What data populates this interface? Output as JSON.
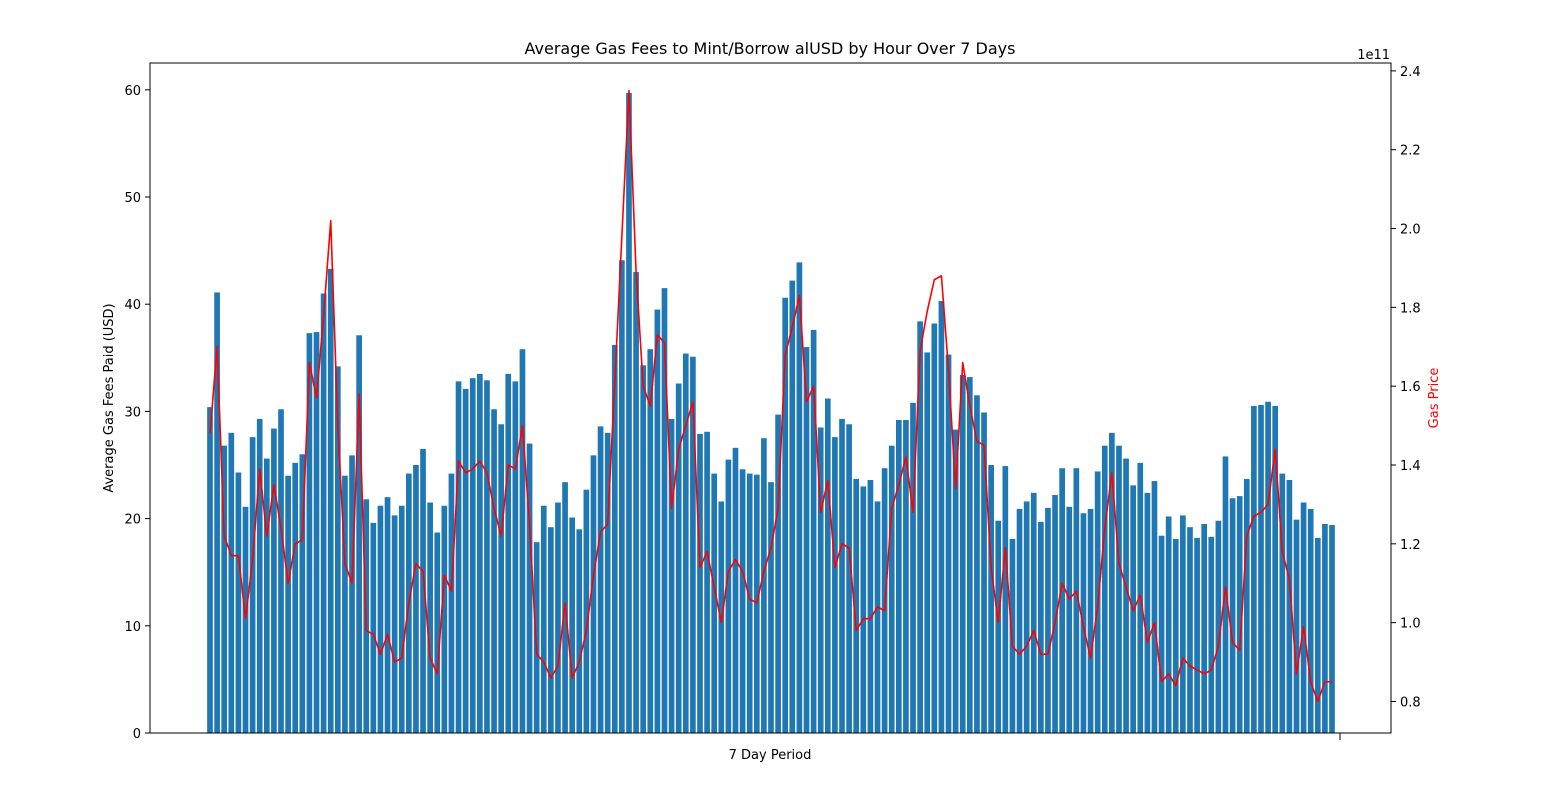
{
  "chart_data": {
    "type": "bar",
    "title": "Average Gas Fees to Mint/Borrow alUSD by Hour Over 7 Days",
    "xlabel": "7 Day Period",
    "ylabel": "Average Gas Fees Paid (USD)",
    "y2label": "Gas Price",
    "y2_offset_text": "1e11",
    "ylim": [
      0,
      62.5
    ],
    "y2lim": [
      0.72,
      2.42
    ],
    "y_ticks": [
      0,
      10,
      20,
      30,
      40,
      50,
      60
    ],
    "y2_ticks": [
      0.8,
      1.0,
      1.2,
      1.4,
      1.6,
      1.8,
      2.0,
      2.2,
      2.4
    ],
    "y_tick_labels": [
      "0",
      "10",
      "20",
      "30",
      "40",
      "50",
      "60"
    ],
    "y2_tick_labels": [
      "0.8",
      "1.0",
      "1.2",
      "1.4",
      "1.6",
      "1.8",
      "2.0",
      "2.2",
      "2.4"
    ],
    "bar_color": "#1f77b4",
    "line_color": "#ff0000",
    "series": [
      {
        "name": "Average Gas Fees Paid (USD)",
        "kind": "bar",
        "values": [
          30.4,
          41.1,
          26.8,
          28.0,
          24.3,
          21.1,
          27.6,
          29.3,
          25.6,
          28.4,
          30.2,
          24.0,
          25.2,
          26.0,
          37.3,
          37.4,
          41.0,
          43.3,
          34.2,
          24.0,
          25.9,
          37.1,
          21.8,
          19.6,
          21.2,
          22.0,
          20.3,
          21.2,
          24.2,
          25.0,
          26.5,
          21.5,
          18.7,
          21.2,
          24.2,
          32.8,
          32.1,
          33.1,
          33.5,
          32.9,
          30.2,
          28.8,
          33.5,
          32.8,
          35.8,
          27.0,
          17.8,
          21.2,
          19.2,
          21.5,
          23.4,
          20.1,
          19.0,
          22.7,
          25.9,
          28.6,
          28.0,
          36.2,
          44.1,
          59.7,
          43.0,
          34.3,
          35.8,
          39.5,
          41.5,
          29.3,
          32.6,
          35.4,
          35.1,
          27.9,
          28.1,
          24.2,
          21.6,
          25.5,
          26.6,
          24.6,
          24.2,
          24.1,
          27.5,
          23.4,
          29.7,
          40.6,
          42.2,
          43.9,
          36.0,
          37.6,
          28.5,
          31.2,
          27.6,
          29.3,
          28.8,
          23.7,
          23.0,
          23.6,
          21.6,
          24.7,
          26.8,
          29.2,
          29.2,
          30.8,
          38.4,
          35.5,
          38.2,
          40.3,
          35.3,
          28.3,
          33.4,
          33.2,
          31.5,
          29.9,
          25.0,
          19.8,
          24.9,
          18.1,
          20.9,
          21.6,
          22.4,
          19.7,
          21.0,
          22.2,
          24.7,
          21.1,
          24.7,
          20.5,
          20.9,
          24.4,
          26.8,
          28.0,
          26.8,
          25.6,
          23.1,
          25.2,
          22.4,
          23.5,
          18.4,
          20.2,
          18.1,
          20.3,
          19.2,
          18.2,
          19.5,
          18.3,
          19.8,
          25.8,
          21.9,
          22.1,
          23.7,
          30.5,
          30.6,
          30.9,
          30.5,
          24.2,
          23.6,
          19.9,
          21.5,
          20.9,
          18.2,
          19.5,
          19.4
        ]
      },
      {
        "name": "Gas Price",
        "kind": "line",
        "values": [
          1.48,
          1.7,
          1.22,
          1.17,
          1.17,
          1.01,
          1.16,
          1.39,
          1.22,
          1.35,
          1.24,
          1.1,
          1.2,
          1.21,
          1.66,
          1.57,
          1.78,
          2.02,
          1.5,
          1.15,
          1.1,
          1.58,
          0.98,
          0.97,
          0.92,
          0.97,
          0.9,
          0.91,
          1.05,
          1.15,
          1.13,
          0.91,
          0.87,
          1.12,
          1.08,
          1.41,
          1.38,
          1.39,
          1.41,
          1.38,
          1.29,
          1.22,
          1.4,
          1.39,
          1.5,
          1.25,
          0.92,
          0.9,
          0.86,
          0.89,
          1.05,
          0.86,
          0.9,
          0.98,
          1.12,
          1.23,
          1.25,
          1.61,
          1.98,
          2.35,
          1.89,
          1.6,
          1.55,
          1.73,
          1.71,
          1.29,
          1.44,
          1.5,
          1.56,
          1.14,
          1.18,
          1.09,
          1.0,
          1.13,
          1.16,
          1.13,
          1.06,
          1.05,
          1.13,
          1.19,
          1.29,
          1.68,
          1.75,
          1.83,
          1.56,
          1.6,
          1.28,
          1.36,
          1.14,
          1.2,
          1.19,
          0.98,
          1.01,
          1.01,
          1.04,
          1.03,
          1.29,
          1.35,
          1.42,
          1.28,
          1.69,
          1.79,
          1.87,
          1.88,
          1.64,
          1.34,
          1.66,
          1.55,
          1.46,
          1.45,
          1.14,
          1.0,
          1.19,
          0.94,
          0.92,
          0.94,
          0.98,
          0.92,
          0.92,
          1.0,
          1.1,
          1.06,
          1.08,
          0.99,
          0.91,
          1.04,
          1.24,
          1.38,
          1.15,
          1.09,
          1.03,
          1.07,
          0.95,
          1.0,
          0.85,
          0.87,
          0.84,
          0.91,
          0.89,
          0.88,
          0.87,
          0.88,
          0.94,
          1.09,
          0.95,
          0.93,
          1.22,
          1.27,
          1.28,
          1.3,
          1.44,
          1.18,
          1.11,
          0.87,
          0.99,
          0.85,
          0.8,
          0.85,
          0.85
        ]
      }
    ]
  }
}
